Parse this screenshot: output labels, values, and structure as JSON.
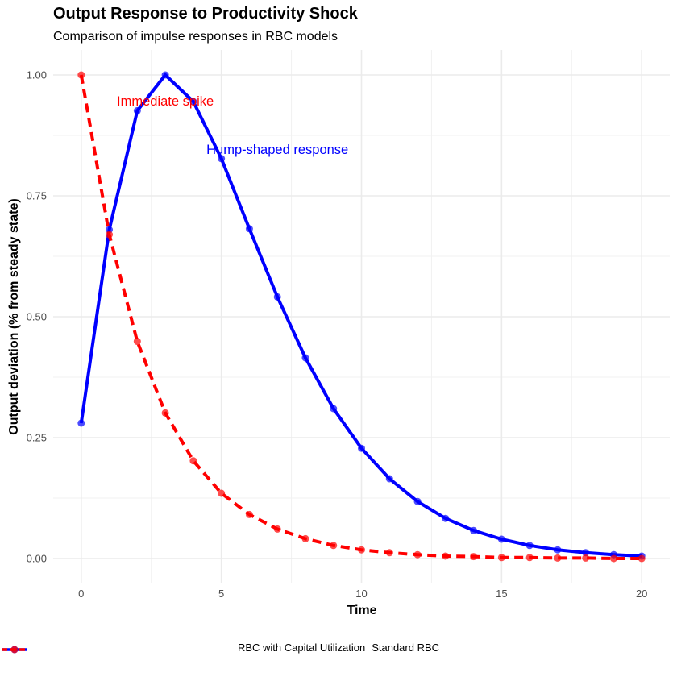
{
  "chart_data": {
    "type": "line",
    "title": "Output Response to Productivity Shock",
    "subtitle": "Comparison of impulse responses in RBC models",
    "xlabel": "Time",
    "ylabel": "Output deviation (% from steady state)",
    "xlim": [
      0,
      20
    ],
    "ylim": [
      0,
      1
    ],
    "x_ticks": [
      0,
      5,
      10,
      15,
      20
    ],
    "y_ticks": [
      0.0,
      0.25,
      0.5,
      0.75,
      1.0
    ],
    "y_tick_labels": [
      "0.00",
      "0.25",
      "0.50",
      "0.75",
      "1.00"
    ],
    "x": [
      0,
      1,
      2,
      3,
      4,
      5,
      6,
      7,
      8,
      9,
      10,
      11,
      12,
      13,
      14,
      15,
      16,
      17,
      18,
      19,
      20
    ],
    "grid": true,
    "legend_position": "bottom",
    "series": [
      {
        "name": "RBC with Capital Utilization",
        "color": "#0000ff",
        "line_style": "solid",
        "values": [
          0.28,
          0.68,
          0.926,
          1.0,
          0.945,
          0.827,
          0.682,
          0.541,
          0.415,
          0.31,
          0.228,
          0.165,
          0.118,
          0.083,
          0.058,
          0.04,
          0.027,
          0.018,
          0.012,
          0.008,
          0.005
        ]
      },
      {
        "name": "Standard RBC",
        "color": "#ff0000",
        "line_style": "dashed",
        "values": [
          1.0,
          0.67,
          0.449,
          0.301,
          0.202,
          0.135,
          0.091,
          0.061,
          0.041,
          0.027,
          0.018,
          0.012,
          0.008,
          0.005,
          0.004,
          0.002,
          0.002,
          0.001,
          0.001,
          0.0,
          0.0
        ]
      }
    ],
    "annotations": [
      {
        "text": "Immediate spike",
        "x": 3.0,
        "y": 0.947,
        "color": "#ff0000"
      },
      {
        "text": "Hump-shaped response",
        "x": 7.0,
        "y": 0.847,
        "color": "#0000ff"
      }
    ]
  }
}
